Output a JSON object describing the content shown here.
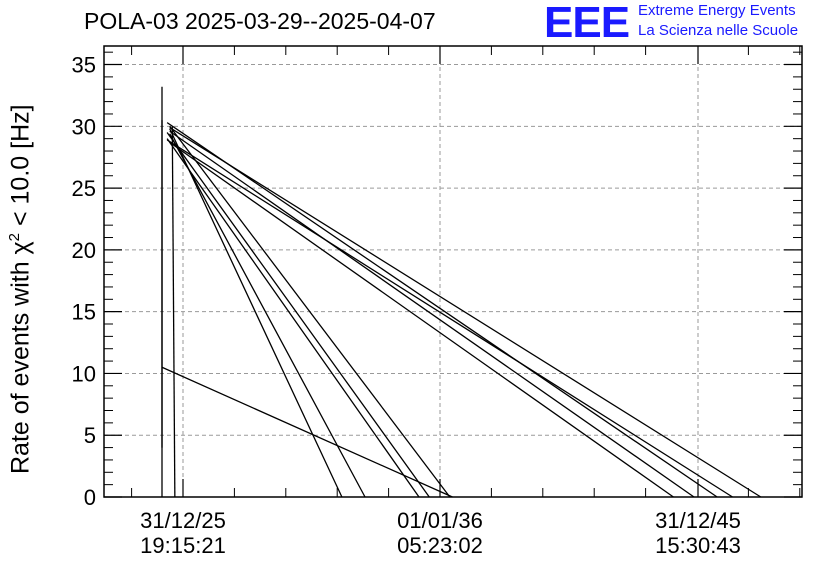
{
  "title": "POLA-03 2025-03-29--2025-04-07",
  "logo": {
    "mark": "EEE",
    "line1": "Extreme Energy Events",
    "line2": "La Scienza nelle Scuole",
    "color": "#1a1aff"
  },
  "chart_data": {
    "type": "line",
    "ylabel_prefix": "Rate of events with ",
    "ylabel_symbol": "χ",
    "ylabel_sup": "2",
    "ylabel_suffix": " < 10.0 [Hz]",
    "ylim": [
      0,
      36.5
    ],
    "y_ticks": [
      0,
      5,
      10,
      15,
      20,
      25,
      30,
      35
    ],
    "x_ticks": [
      {
        "date": "31/12/25",
        "time": "19:15:21"
      },
      {
        "date": "01/01/36",
        "time": "05:23:02"
      },
      {
        "date": "31/12/45",
        "time": "15:30:43"
      }
    ],
    "grid": true,
    "line_color": "#000000",
    "segments": [
      [
        [
          0.0,
          33.2
        ],
        [
          0.0,
          4.0
        ]
      ],
      [
        [
          0.0,
          30.5
        ],
        [
          0.0,
          0.0
        ]
      ],
      [
        [
          0.4,
          30.0
        ],
        [
          0.5,
          0.0
        ]
      ],
      [
        [
          0.0,
          10.5
        ],
        [
          11.3,
          0.0
        ]
      ],
      [
        [
          0.3,
          29.8
        ],
        [
          7.0,
          0.0
        ]
      ],
      [
        [
          0.3,
          29.4
        ],
        [
          7.9,
          0.0
        ]
      ],
      [
        [
          0.2,
          29.0
        ],
        [
          10.0,
          0.0
        ]
      ],
      [
        [
          0.2,
          29.5
        ],
        [
          10.4,
          0.0
        ]
      ],
      [
        [
          0.3,
          30.0
        ],
        [
          11.2,
          0.0
        ]
      ],
      [
        [
          0.3,
          28.7
        ],
        [
          19.9,
          0.0
        ]
      ],
      [
        [
          0.3,
          29.6
        ],
        [
          20.7,
          0.0
        ]
      ],
      [
        [
          0.2,
          30.3
        ],
        [
          21.6,
          0.0
        ]
      ],
      [
        [
          0.2,
          28.9
        ],
        [
          22.2,
          0.0
        ]
      ],
      [
        [
          0.3,
          29.9
        ],
        [
          23.3,
          0.0
        ]
      ]
    ]
  }
}
